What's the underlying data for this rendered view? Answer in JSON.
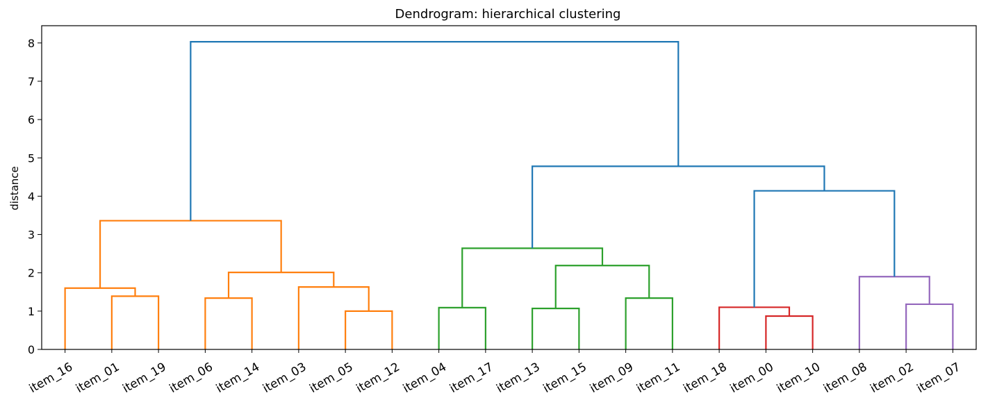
{
  "chart_data": {
    "type": "dendrogram",
    "title": "Dendrogram: hierarchical clustering",
    "ylabel": "distance",
    "xlabel": "",
    "ylim": [
      0,
      8.45
    ],
    "yticks": [
      0,
      1,
      2,
      3,
      4,
      5,
      6,
      7,
      8
    ],
    "leaves": [
      "item_16",
      "item_01",
      "item_19",
      "item_06",
      "item_14",
      "item_03",
      "item_05",
      "item_12",
      "item_04",
      "item_17",
      "item_13",
      "item_15",
      "item_09",
      "item_11",
      "item_18",
      "item_00",
      "item_10",
      "item_08",
      "item_02",
      "item_07"
    ],
    "colors": {
      "orange": "#ff7f0e",
      "green": "#2ca02c",
      "red": "#d62728",
      "purple": "#9467bd",
      "above_threshold": "#1f77b4"
    },
    "merges": [
      {
        "left": "item_01",
        "right": "item_19",
        "height": 1.39,
        "color": "orange"
      },
      {
        "left": "item_16",
        "right": "c0",
        "height": 1.6,
        "color": "orange"
      },
      {
        "left": "item_06",
        "right": "item_14",
        "height": 1.34,
        "color": "orange"
      },
      {
        "left": "item_05",
        "right": "item_12",
        "height": 1.0,
        "color": "orange"
      },
      {
        "left": "item_03",
        "right": "c3",
        "height": 1.63,
        "color": "orange"
      },
      {
        "left": "c2",
        "right": "c4",
        "height": 2.01,
        "color": "orange"
      },
      {
        "left": "c1",
        "right": "c5",
        "height": 3.36,
        "color": "orange"
      },
      {
        "left": "item_04",
        "right": "item_17",
        "height": 1.09,
        "color": "green"
      },
      {
        "left": "item_13",
        "right": "item_15",
        "height": 1.07,
        "color": "green"
      },
      {
        "left": "item_09",
        "right": "item_11",
        "height": 1.34,
        "color": "green"
      },
      {
        "left": "c8",
        "right": "c9",
        "height": 2.19,
        "color": "green"
      },
      {
        "left": "c7",
        "right": "c10",
        "height": 2.64,
        "color": "green"
      },
      {
        "left": "item_00",
        "right": "item_10",
        "height": 0.87,
        "color": "red"
      },
      {
        "left": "item_18",
        "right": "c12",
        "height": 1.1,
        "color": "red"
      },
      {
        "left": "item_02",
        "right": "item_07",
        "height": 1.18,
        "color": "purple"
      },
      {
        "left": "item_08",
        "right": "c14",
        "height": 1.9,
        "color": "purple"
      },
      {
        "left": "c13",
        "right": "c15",
        "height": 4.14,
        "color": "above_threshold"
      },
      {
        "left": "c11",
        "right": "c16",
        "height": 4.78,
        "color": "above_threshold"
      },
      {
        "left": "c6",
        "right": "c17",
        "height": 8.03,
        "color": "above_threshold"
      }
    ]
  }
}
